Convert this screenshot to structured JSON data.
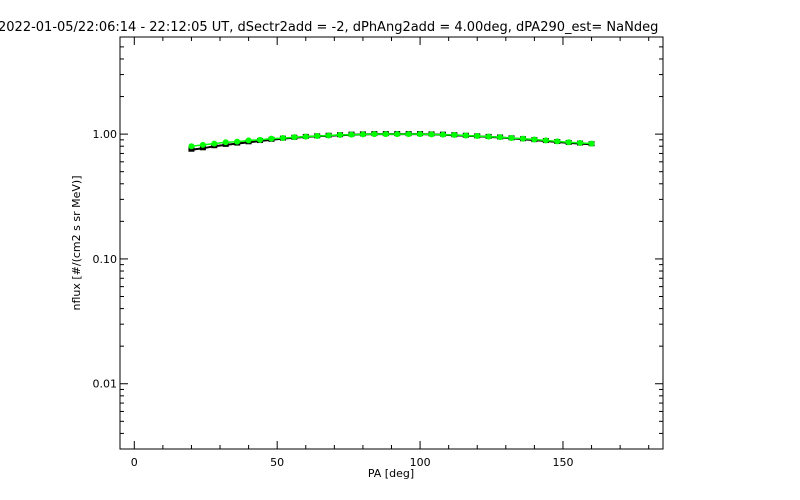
{
  "chart_data": {
    "type": "scatter",
    "title": "2022-01-05/22:06:14 - 22:12:05 UT, dSectr2add = -2, dPhAng2add = 4.00deg, dPA290_est=   NaNdeg",
    "xlabel": "PA [deg]",
    "ylabel": "nflux [#/(cm2 s sr MeV)]",
    "xlim": [
      -5,
      185
    ],
    "ylim": [
      0.003,
      6
    ],
    "yscale": "log",
    "grid": false,
    "x_ticks": [
      0,
      50,
      100,
      150
    ],
    "x_tick_labels": [
      "0",
      "50",
      "100",
      "150"
    ],
    "y_ticks": [
      0.01,
      0.1,
      1.0
    ],
    "y_tick_labels": [
      "0.01",
      "0.10",
      "1.00"
    ],
    "series": [
      {
        "color": "#000000",
        "x": [
          20,
          24,
          28,
          32,
          36,
          40,
          44,
          48,
          52,
          56,
          60,
          64,
          68,
          72,
          76,
          80,
          84,
          88,
          92,
          96,
          100,
          104,
          108,
          112,
          116,
          120,
          124,
          128,
          132,
          136,
          140,
          144,
          148,
          152,
          156,
          160
        ],
        "y": [
          0.75,
          0.77,
          0.8,
          0.82,
          0.84,
          0.86,
          0.88,
          0.9,
          0.92,
          0.935,
          0.95,
          0.96,
          0.97,
          0.98,
          0.99,
          0.995,
          1.0,
          1.0,
          1.0,
          1.0,
          1.0,
          0.995,
          0.99,
          0.98,
          0.97,
          0.96,
          0.95,
          0.94,
          0.925,
          0.91,
          0.895,
          0.88,
          0.865,
          0.85,
          0.84,
          0.83
        ]
      },
      {
        "color": "#00ff00",
        "x": [
          20,
          24,
          28,
          32,
          36,
          40,
          44,
          48,
          52,
          56,
          60,
          64,
          68,
          72,
          76,
          80,
          84,
          88,
          92,
          96,
          100,
          104,
          108,
          112,
          116,
          120,
          124,
          128,
          132,
          136,
          140,
          144,
          148,
          152,
          156,
          160
        ],
        "y": [
          0.8,
          0.82,
          0.84,
          0.86,
          0.87,
          0.89,
          0.9,
          0.92,
          0.93,
          0.945,
          0.955,
          0.965,
          0.975,
          0.985,
          0.99,
          0.995,
          1.0,
          1.0,
          1.0,
          1.0,
          1.0,
          0.995,
          0.99,
          0.985,
          0.975,
          0.965,
          0.955,
          0.945,
          0.93,
          0.92,
          0.905,
          0.89,
          0.875,
          0.86,
          0.85,
          0.84
        ]
      }
    ]
  }
}
